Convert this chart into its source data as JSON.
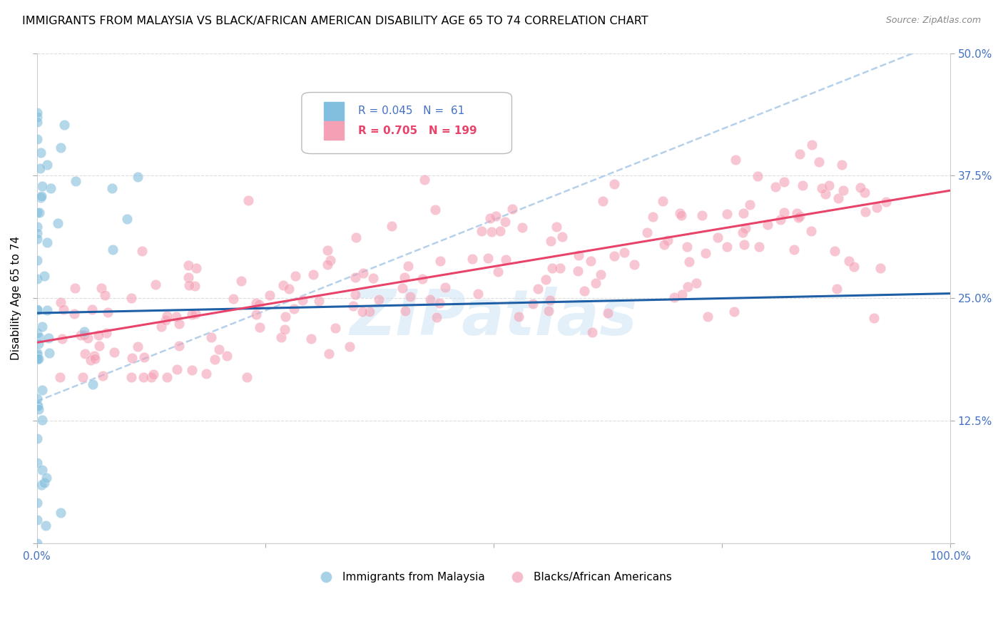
{
  "title": "IMMIGRANTS FROM MALAYSIA VS BLACK/AFRICAN AMERICAN DISABILITY AGE 65 TO 74 CORRELATION CHART",
  "source": "Source: ZipAtlas.com",
  "ylabel": "Disability Age 65 to 74",
  "xlim": [
    0,
    1.0
  ],
  "ylim": [
    0,
    0.5
  ],
  "ytick_vals": [
    0.0,
    0.125,
    0.25,
    0.375,
    0.5
  ],
  "ytick_labels": [
    "",
    "12.5%",
    "25.0%",
    "37.5%",
    "50.0%"
  ],
  "xtick_vals": [
    0.0,
    0.25,
    0.5,
    0.75,
    1.0
  ],
  "xtick_labels": [
    "0.0%",
    "",
    "",
    "",
    "100.0%"
  ],
  "blue_color": "#82bedd",
  "pink_color": "#f4a0b5",
  "blue_line_color": "#1f5fa6",
  "pink_line_color": "#e8436a",
  "dash_line_color": "#a8c8e8",
  "axis_color": "#4472c4",
  "title_fontsize": 11.5,
  "label_fontsize": 11,
  "tick_fontsize": 11,
  "source_fontsize": 9,
  "watermark_text": "ZIPatlas",
  "blue_R": 0.045,
  "pink_R": 0.705,
  "blue_N": 61,
  "pink_N": 199,
  "blue_intercept": 0.235,
  "blue_slope": 0.02,
  "pink_intercept": 0.205,
  "pink_slope": 0.155,
  "dash_intercept": 0.145,
  "dash_slope": 0.37
}
